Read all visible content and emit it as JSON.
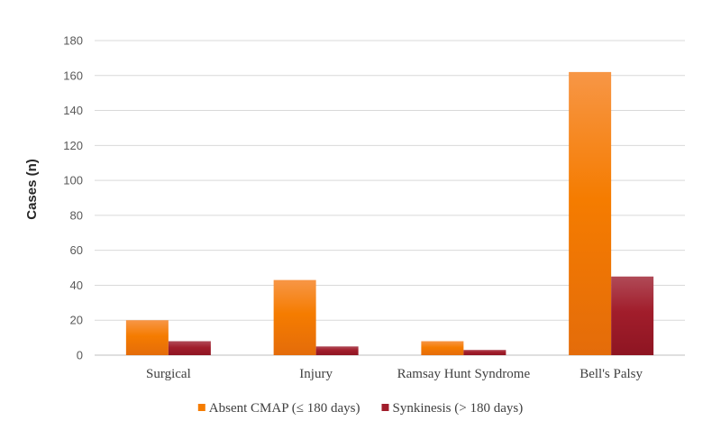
{
  "chart_data": {
    "type": "bar",
    "ylabel": "Cases (n)",
    "xlabel": "",
    "ylim": [
      0,
      180
    ],
    "yticks": [
      0,
      20,
      40,
      60,
      80,
      100,
      120,
      140,
      160,
      180
    ],
    "grid": true,
    "legend_position": "bottom",
    "categories": [
      "Surgical",
      "Injury",
      "Ramsay Hunt Syndrome",
      "Bell's Palsy"
    ],
    "series": [
      {
        "name": "Absent CMAP (≤ 180 days)",
        "values": [
          20,
          43,
          8,
          162
        ],
        "color": "#F57C00"
      },
      {
        "name": "Synkinesis (> 180 days)",
        "values": [
          8,
          5,
          3,
          45
        ],
        "color": "#A11D2B"
      }
    ]
  }
}
